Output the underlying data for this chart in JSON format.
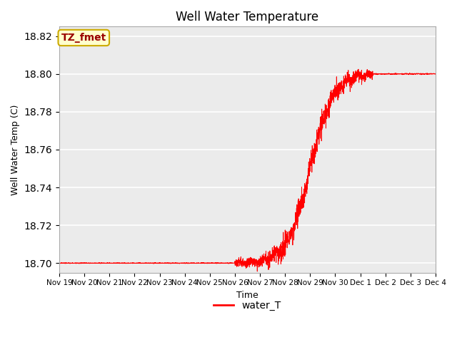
{
  "title": "Well Water Temperature",
  "xlabel": "Time",
  "ylabel": "Well Water Temp (C)",
  "legend_label": "water_T",
  "annotation_text": "TZ_fmet",
  "annotation_bbox": {
    "facecolor": "#ffffcc",
    "edgecolor": "#ccaa00",
    "boxstyle": "round,pad=0.3"
  },
  "annotation_text_color": "#990000",
  "line_color": "#ff0000",
  "background_color": "#ebebeb",
  "ylim": [
    18.695,
    18.825
  ],
  "yticks": [
    18.7,
    18.72,
    18.74,
    18.76,
    18.78,
    18.8,
    18.82
  ],
  "figsize": [
    6.4,
    4.8
  ],
  "dpi": 100,
  "tick_labels": [
    "Nov 19",
    "Nov 20",
    "Nov 21",
    "Nov 22",
    "Nov 23",
    "Nov 24",
    "Nov 25",
    "Nov 26",
    "Nov 27",
    "Nov 28",
    "Nov 29",
    "Nov 30",
    "Dec 1",
    "Dec 2",
    "Dec 3",
    "Dec 4"
  ]
}
